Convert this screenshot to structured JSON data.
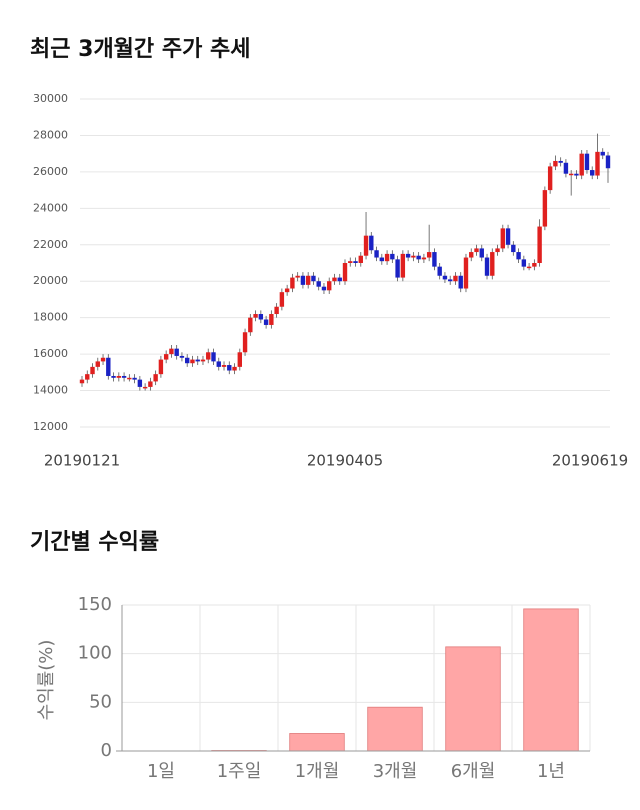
{
  "chart_data": [
    {
      "type": "candlestick",
      "title": "최근 3개월간 주가 추세",
      "categories": [
        "20190121",
        null,
        null,
        null,
        null,
        null,
        null,
        null,
        null,
        null,
        null,
        null,
        null,
        null,
        null,
        null,
        null,
        null,
        null,
        null,
        null,
        null,
        null,
        null,
        null,
        null,
        null,
        null,
        null,
        null,
        null,
        null,
        null,
        null,
        null,
        null,
        null,
        null,
        null,
        null,
        null,
        null,
        null,
        null,
        null,
        null,
        null,
        null,
        null,
        null,
        "20190405",
        null,
        null,
        null,
        null,
        null,
        null,
        null,
        null,
        null,
        null,
        null,
        null,
        null,
        null,
        null,
        null,
        null,
        null,
        null,
        null,
        null,
        null,
        null,
        null,
        null,
        null,
        null,
        null,
        null,
        null,
        null,
        null,
        null,
        null,
        null,
        null,
        null,
        null,
        null,
        null,
        null,
        null,
        null,
        null,
        null,
        null,
        null,
        null,
        null,
        "20190619"
      ],
      "open": [
        14400,
        14600,
        14900,
        15300,
        15600,
        15800,
        14800,
        14700,
        14800,
        14700,
        14700,
        14600,
        14200,
        14200,
        14500,
        14900,
        15700,
        16000,
        16300,
        15900,
        15800,
        15500,
        15700,
        15600,
        15700,
        16100,
        15600,
        15300,
        15400,
        15100,
        15300,
        16100,
        17200,
        18000,
        18200,
        17900,
        17600,
        18200,
        18600,
        19400,
        19600,
        20200,
        20300,
        19800,
        20300,
        20000,
        19700,
        19500,
        20000,
        20200,
        20000,
        21000,
        21100,
        21000,
        21400,
        22500,
        21700,
        21300,
        21100,
        21500,
        21200,
        20200,
        21500,
        21300,
        21400,
        21200,
        21300,
        21600,
        20800,
        20300,
        20100,
        20000,
        20300,
        19600,
        21300,
        21600,
        21800,
        21300,
        20300,
        21600,
        21800,
        22900,
        22000,
        21600,
        21200,
        20800,
        20800,
        21000,
        23000,
        25000,
        26300,
        26600,
        26500,
        25900,
        25900,
        25800,
        27000,
        26100,
        25800,
        27100,
        26900
      ],
      "high": [
        14800,
        15100,
        15500,
        15800,
        16000,
        16000,
        15000,
        15000,
        15000,
        14900,
        14900,
        14800,
        14400,
        14700,
        15100,
        15900,
        16200,
        16500,
        16500,
        16100,
        16000,
        15900,
        15900,
        15900,
        16300,
        16300,
        15800,
        15600,
        15600,
        15500,
        16300,
        17400,
        18200,
        18400,
        18400,
        18100,
        18400,
        18800,
        19600,
        19800,
        20400,
        20500,
        20500,
        20500,
        20500,
        20200,
        19900,
        20200,
        20400,
        20400,
        21200,
        21300,
        21300,
        21600,
        23800,
        22700,
        21900,
        21500,
        21700,
        21700,
        21400,
        21700,
        21700,
        21600,
        21600,
        21500,
        23100,
        21800,
        21000,
        20500,
        20300,
        20500,
        20500,
        21500,
        21800,
        22000,
        22000,
        21500,
        21800,
        22000,
        23100,
        23100,
        22200,
        21800,
        21400,
        21000,
        21200,
        23400,
        25200,
        26500,
        26900,
        26800,
        26700,
        26100,
        26100,
        27200,
        27200,
        26300,
        28100,
        27300,
        27100
      ],
      "low": [
        14200,
        14400,
        14700,
        15100,
        15400,
        14600,
        14500,
        14500,
        14500,
        14500,
        14400,
        14000,
        14000,
        14000,
        14300,
        14700,
        15500,
        15800,
        15700,
        15600,
        15300,
        15300,
        15400,
        15400,
        15500,
        15400,
        15100,
        15100,
        14900,
        14900,
        15100,
        15900,
        17000,
        17800,
        17700,
        17400,
        17400,
        18000,
        18400,
        19200,
        19400,
        20000,
        19600,
        19600,
        19800,
        19500,
        19300,
        19300,
        19800,
        19800,
        19800,
        20800,
        20800,
        20800,
        21200,
        21500,
        21100,
        20900,
        20900,
        21000,
        20000,
        20000,
        21100,
        21100,
        21000,
        21000,
        21100,
        20600,
        20100,
        19900,
        19800,
        19800,
        19400,
        19400,
        21100,
        21400,
        21100,
        20100,
        20100,
        21400,
        21600,
        21800,
        21400,
        21000,
        20600,
        20600,
        20600,
        20800,
        22800,
        24800,
        26100,
        26300,
        25700,
        24700,
        25600,
        25600,
        25900,
        25600,
        25600,
        26700,
        25400
      ],
      "close": [
        14600,
        14900,
        15300,
        15600,
        15800,
        14800,
        14700,
        14800,
        14700,
        14700,
        14600,
        14200,
        14200,
        14500,
        14900,
        15700,
        16000,
        16300,
        15900,
        15800,
        15500,
        15700,
        15600,
        15700,
        16100,
        15600,
        15300,
        15400,
        15100,
        15300,
        16100,
        17200,
        18000,
        18200,
        17900,
        17600,
        18200,
        18600,
        19400,
        19600,
        20200,
        20300,
        19800,
        20300,
        20000,
        19700,
        19500,
        20000,
        20200,
        20000,
        21000,
        21100,
        21000,
        21400,
        22500,
        21700,
        21300,
        21100,
        21500,
        21200,
        20200,
        21500,
        21300,
        21400,
        21200,
        21300,
        21600,
        20800,
        20300,
        20100,
        20000,
        20300,
        19600,
        21300,
        21600,
        21800,
        21300,
        20300,
        21600,
        21800,
        22900,
        22000,
        21600,
        21200,
        20800,
        20800,
        21000,
        23000,
        25000,
        26300,
        26600,
        26500,
        25900,
        25900,
        25800,
        27000,
        26100,
        25800,
        27100,
        26900,
        26200
      ],
      "up_color": "#e0201f",
      "down_color": "#1a22c4",
      "ylim": [
        12000,
        30000
      ],
      "yticks": [
        12000,
        14000,
        16000,
        18000,
        20000,
        22000,
        24000,
        26000,
        28000,
        30000
      ],
      "grid": true
    },
    {
      "type": "bar",
      "title": "기간별 수익률",
      "y_label": "수익률(%)",
      "categories": [
        "1일",
        "1주일",
        "1개월",
        "3개월",
        "6개월",
        "1년"
      ],
      "values": [
        0,
        0.5,
        18,
        45,
        107,
        146
      ],
      "color": "#ffa6a6",
      "edge_color": "#e07a7a",
      "ylim": [
        0,
        150
      ],
      "yticks": [
        0,
        50,
        100,
        150
      ],
      "grid": true
    }
  ]
}
